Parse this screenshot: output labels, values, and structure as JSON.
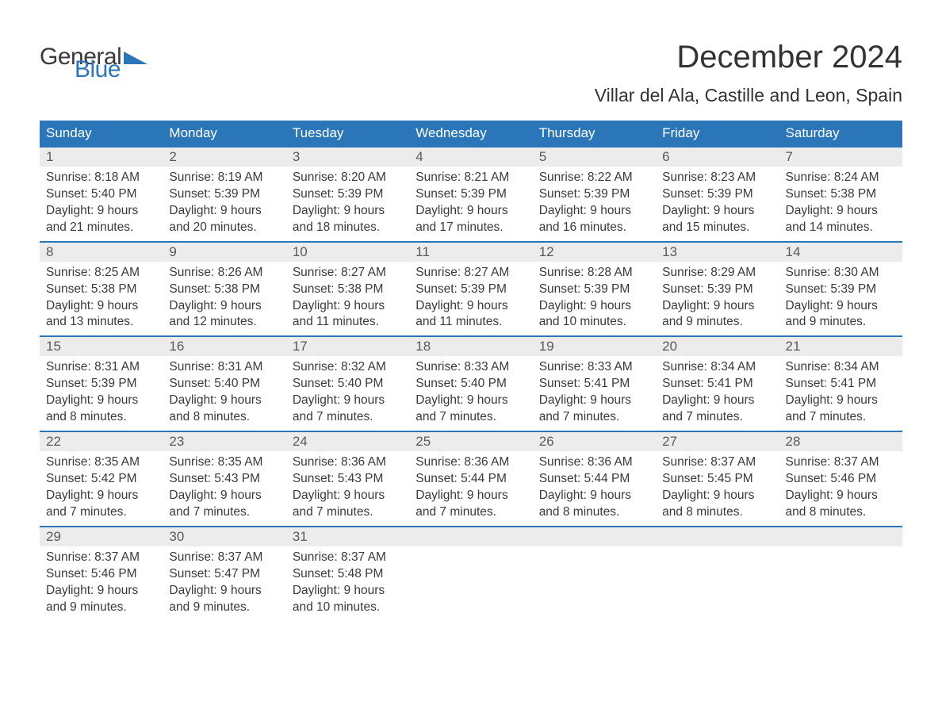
{
  "logo": {
    "text1": "General",
    "text2": "Blue",
    "color_general": "#3a3a3a",
    "color_blue": "#2a76b8",
    "triangle_color": "#2a76b8"
  },
  "title": "December 2024",
  "location": "Villar del Ala, Castille and Leon, Spain",
  "colors": {
    "header_bg": "#2a76b8",
    "header_text": "#ffffff",
    "daynum_bg": "#ececec",
    "week_border": "#2a76b8",
    "body_text": "#3a3a3a",
    "background": "#ffffff"
  },
  "typography": {
    "title_fontsize": 40,
    "location_fontsize": 23,
    "weekday_fontsize": 17,
    "daynum_fontsize": 17,
    "cell_fontsize": 15.5
  },
  "layout": {
    "columns": 7,
    "rows": 5
  },
  "weekdays": [
    "Sunday",
    "Monday",
    "Tuesday",
    "Wednesday",
    "Thursday",
    "Friday",
    "Saturday"
  ],
  "labels": {
    "sunrise": "Sunrise:",
    "sunset": "Sunset:",
    "daylight": "Daylight:"
  },
  "weeks": [
    [
      {
        "n": "1",
        "sr": "8:18 AM",
        "ss": "5:40 PM",
        "dl1": "9 hours",
        "dl2": "and 21 minutes."
      },
      {
        "n": "2",
        "sr": "8:19 AM",
        "ss": "5:39 PM",
        "dl1": "9 hours",
        "dl2": "and 20 minutes."
      },
      {
        "n": "3",
        "sr": "8:20 AM",
        "ss": "5:39 PM",
        "dl1": "9 hours",
        "dl2": "and 18 minutes."
      },
      {
        "n": "4",
        "sr": "8:21 AM",
        "ss": "5:39 PM",
        "dl1": "9 hours",
        "dl2": "and 17 minutes."
      },
      {
        "n": "5",
        "sr": "8:22 AM",
        "ss": "5:39 PM",
        "dl1": "9 hours",
        "dl2": "and 16 minutes."
      },
      {
        "n": "6",
        "sr": "8:23 AM",
        "ss": "5:39 PM",
        "dl1": "9 hours",
        "dl2": "and 15 minutes."
      },
      {
        "n": "7",
        "sr": "8:24 AM",
        "ss": "5:38 PM",
        "dl1": "9 hours",
        "dl2": "and 14 minutes."
      }
    ],
    [
      {
        "n": "8",
        "sr": "8:25 AM",
        "ss": "5:38 PM",
        "dl1": "9 hours",
        "dl2": "and 13 minutes."
      },
      {
        "n": "9",
        "sr": "8:26 AM",
        "ss": "5:38 PM",
        "dl1": "9 hours",
        "dl2": "and 12 minutes."
      },
      {
        "n": "10",
        "sr": "8:27 AM",
        "ss": "5:38 PM",
        "dl1": "9 hours",
        "dl2": "and 11 minutes."
      },
      {
        "n": "11",
        "sr": "8:27 AM",
        "ss": "5:39 PM",
        "dl1": "9 hours",
        "dl2": "and 11 minutes."
      },
      {
        "n": "12",
        "sr": "8:28 AM",
        "ss": "5:39 PM",
        "dl1": "9 hours",
        "dl2": "and 10 minutes."
      },
      {
        "n": "13",
        "sr": "8:29 AM",
        "ss": "5:39 PM",
        "dl1": "9 hours",
        "dl2": "and 9 minutes."
      },
      {
        "n": "14",
        "sr": "8:30 AM",
        "ss": "5:39 PM",
        "dl1": "9 hours",
        "dl2": "and 9 minutes."
      }
    ],
    [
      {
        "n": "15",
        "sr": "8:31 AM",
        "ss": "5:39 PM",
        "dl1": "9 hours",
        "dl2": "and 8 minutes."
      },
      {
        "n": "16",
        "sr": "8:31 AM",
        "ss": "5:40 PM",
        "dl1": "9 hours",
        "dl2": "and 8 minutes."
      },
      {
        "n": "17",
        "sr": "8:32 AM",
        "ss": "5:40 PM",
        "dl1": "9 hours",
        "dl2": "and 7 minutes."
      },
      {
        "n": "18",
        "sr": "8:33 AM",
        "ss": "5:40 PM",
        "dl1": "9 hours",
        "dl2": "and 7 minutes."
      },
      {
        "n": "19",
        "sr": "8:33 AM",
        "ss": "5:41 PM",
        "dl1": "9 hours",
        "dl2": "and 7 minutes."
      },
      {
        "n": "20",
        "sr": "8:34 AM",
        "ss": "5:41 PM",
        "dl1": "9 hours",
        "dl2": "and 7 minutes."
      },
      {
        "n": "21",
        "sr": "8:34 AM",
        "ss": "5:41 PM",
        "dl1": "9 hours",
        "dl2": "and 7 minutes."
      }
    ],
    [
      {
        "n": "22",
        "sr": "8:35 AM",
        "ss": "5:42 PM",
        "dl1": "9 hours",
        "dl2": "and 7 minutes."
      },
      {
        "n": "23",
        "sr": "8:35 AM",
        "ss": "5:43 PM",
        "dl1": "9 hours",
        "dl2": "and 7 minutes."
      },
      {
        "n": "24",
        "sr": "8:36 AM",
        "ss": "5:43 PM",
        "dl1": "9 hours",
        "dl2": "and 7 minutes."
      },
      {
        "n": "25",
        "sr": "8:36 AM",
        "ss": "5:44 PM",
        "dl1": "9 hours",
        "dl2": "and 7 minutes."
      },
      {
        "n": "26",
        "sr": "8:36 AM",
        "ss": "5:44 PM",
        "dl1": "9 hours",
        "dl2": "and 8 minutes."
      },
      {
        "n": "27",
        "sr": "8:37 AM",
        "ss": "5:45 PM",
        "dl1": "9 hours",
        "dl2": "and 8 minutes."
      },
      {
        "n": "28",
        "sr": "8:37 AM",
        "ss": "5:46 PM",
        "dl1": "9 hours",
        "dl2": "and 8 minutes."
      }
    ],
    [
      {
        "n": "29",
        "sr": "8:37 AM",
        "ss": "5:46 PM",
        "dl1": "9 hours",
        "dl2": "and 9 minutes."
      },
      {
        "n": "30",
        "sr": "8:37 AM",
        "ss": "5:47 PM",
        "dl1": "9 hours",
        "dl2": "and 9 minutes."
      },
      {
        "n": "31",
        "sr": "8:37 AM",
        "ss": "5:48 PM",
        "dl1": "9 hours",
        "dl2": "and 10 minutes."
      },
      {
        "n": "",
        "sr": "",
        "ss": "",
        "dl1": "",
        "dl2": ""
      },
      {
        "n": "",
        "sr": "",
        "ss": "",
        "dl1": "",
        "dl2": ""
      },
      {
        "n": "",
        "sr": "",
        "ss": "",
        "dl1": "",
        "dl2": ""
      },
      {
        "n": "",
        "sr": "",
        "ss": "",
        "dl1": "",
        "dl2": ""
      }
    ]
  ]
}
